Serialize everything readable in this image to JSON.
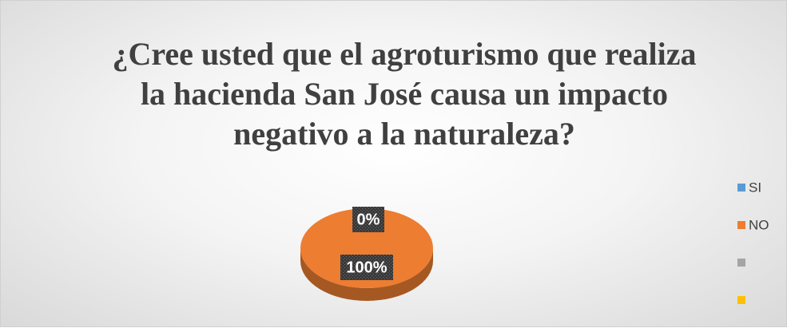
{
  "chart_data": {
    "type": "pie",
    "title": "¿Cree usted que el agroturismo que realiza la hacienda San José causa un impacto negativo a la naturaleza?",
    "categories": [
      "SI",
      "NO",
      null,
      null
    ],
    "values": [
      0,
      100,
      null,
      null
    ],
    "value_labels": [
      "0%",
      "100%",
      null,
      null
    ],
    "colors": [
      "#5b9bd5",
      "#ed7d31",
      "#a5a5a5",
      "#ffc000"
    ],
    "legend": "right"
  }
}
